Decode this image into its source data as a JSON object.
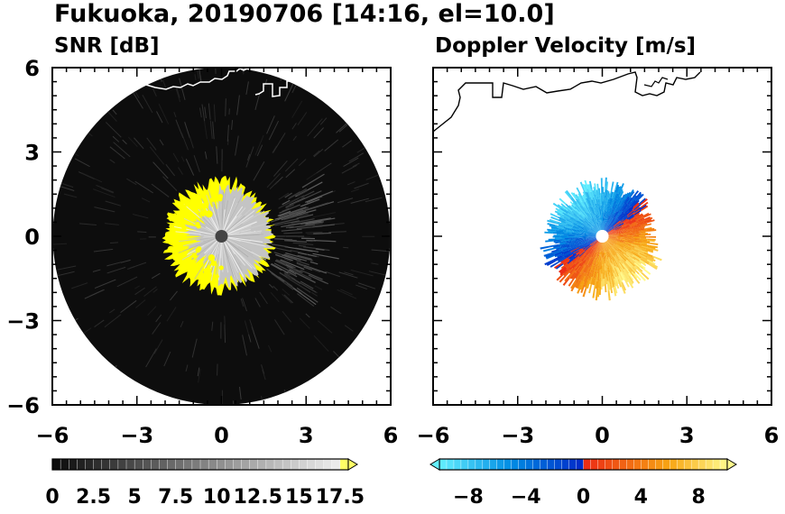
{
  "figure": {
    "title": "Fukuoka, 20190706 [14:16, el=10.0]"
  },
  "chart_data": [
    {
      "type": "heatmap",
      "projection": "polar-scan",
      "title": "SNR [dB]",
      "xlim": [
        -6,
        6
      ],
      "ylim": [
        -6,
        6
      ],
      "xticks": [
        "-6",
        "-3",
        "0",
        "3",
        "6"
      ],
      "yticks": [
        "6",
        "3",
        "0",
        "-3",
        "-6"
      ],
      "range_max": 6,
      "echo_radius": 2,
      "colorbar": {
        "min": 0,
        "max": 18,
        "step": 0.5,
        "extend": "max",
        "colormap": "grayscale to yellow",
        "tick_values": [
          0,
          2.5,
          5,
          7.5,
          10,
          12.5,
          15,
          17.5
        ],
        "tick_labels": [
          "0",
          "2.5",
          "5",
          "7.5",
          "10",
          "12.5",
          "15",
          "17.5"
        ]
      },
      "colors": {
        "background": "#0d0d0d",
        "echo": "#c4c4c4",
        "saturated": "#ffff00",
        "coastline": "#ffffff"
      }
    },
    {
      "type": "heatmap",
      "projection": "polar-scan",
      "title": "Doppler Velocity [m/s]",
      "xlim": [
        -6,
        6
      ],
      "ylim": [
        -6,
        6
      ],
      "xticks": [
        "-6",
        "-3",
        "0",
        "3",
        "6"
      ],
      "echo_radius": 2,
      "colorbar": {
        "min": -10,
        "max": 10,
        "step": 0.5,
        "extend": "both",
        "colormap": "cyan-blue / red-orange-yellow",
        "tick_values": [
          -8,
          -4,
          0,
          4,
          8
        ],
        "tick_labels": [
          "−8",
          "−4",
          "0",
          "4",
          "8"
        ]
      },
      "colors": {
        "coastline": "#000000"
      }
    }
  ]
}
